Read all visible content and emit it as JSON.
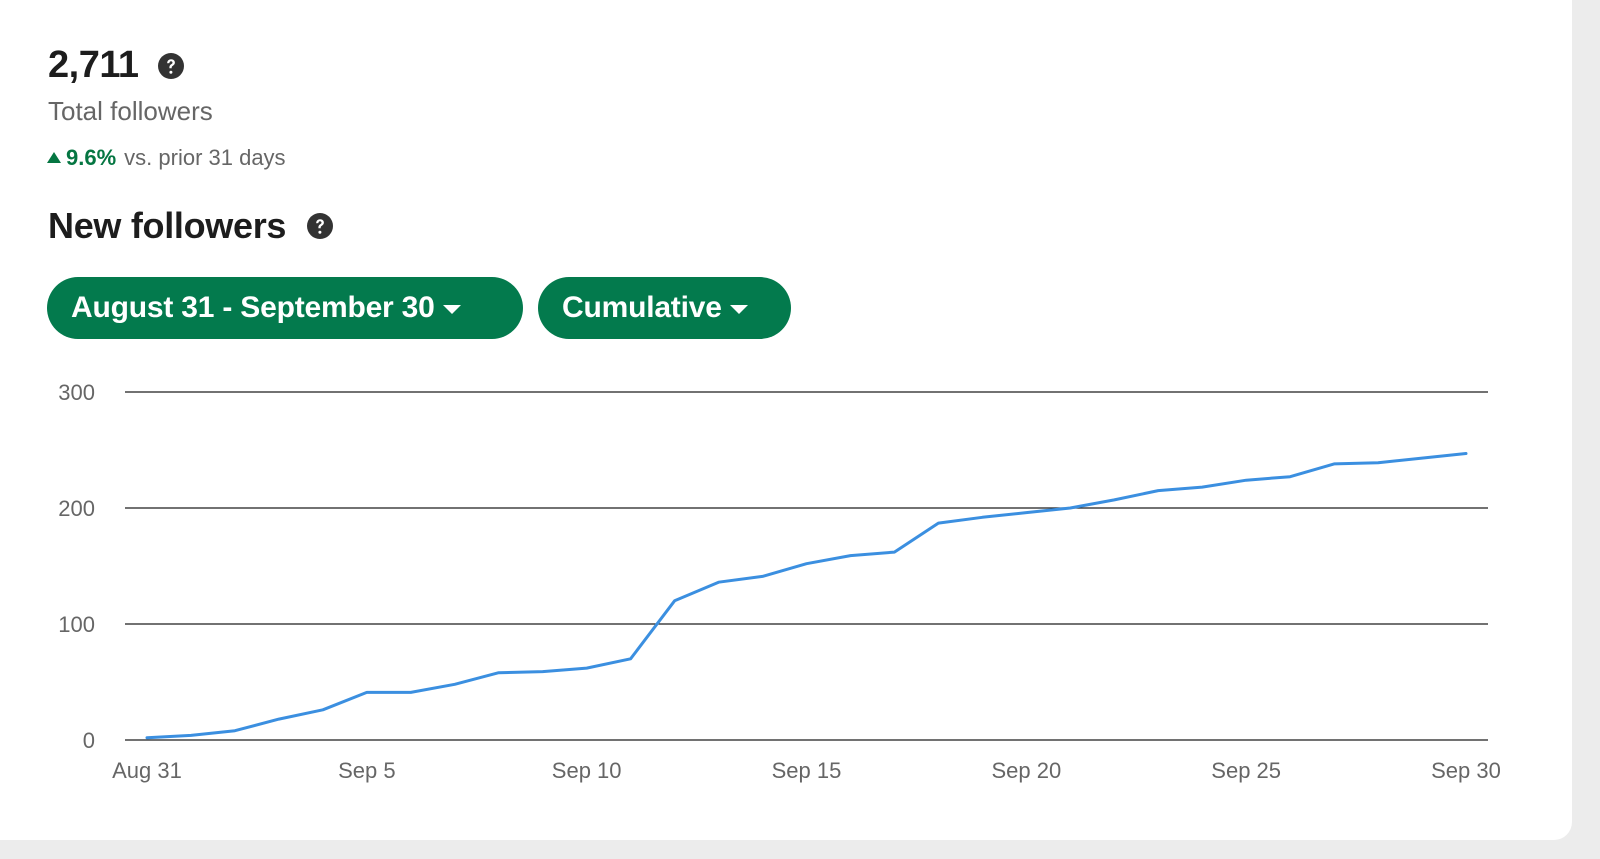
{
  "summary": {
    "total_value": "2,711",
    "total_label": "Total followers",
    "change_value": "9.6%",
    "change_text": "vs. prior 31 days"
  },
  "section": {
    "title": "New followers"
  },
  "filters": {
    "date_range_label": "August 31 - September 30",
    "mode_label": "Cumulative"
  },
  "colors": {
    "accent": "#037a4d",
    "positive": "#057642",
    "line": "#3b8fe0"
  },
  "icons": [
    "help-icon",
    "up-arrow-icon",
    "caret-down-icon"
  ],
  "chart_data": {
    "type": "line",
    "title": "",
    "xlabel": "",
    "ylabel": "",
    "ylim": [
      0,
      300
    ],
    "yticks": [
      "0",
      "100",
      "200",
      "300"
    ],
    "xticks": [
      "Aug 31",
      "Sep 5",
      "Sep 10",
      "Sep 15",
      "Sep 20",
      "Sep 25",
      "Sep 30"
    ],
    "grid": true,
    "x": [
      "Aug 31",
      "Sep 1",
      "Sep 2",
      "Sep 3",
      "Sep 4",
      "Sep 5",
      "Sep 6",
      "Sep 7",
      "Sep 8",
      "Sep 9",
      "Sep 10",
      "Sep 11",
      "Sep 12",
      "Sep 13",
      "Sep 14",
      "Sep 15",
      "Sep 16",
      "Sep 17",
      "Sep 18",
      "Sep 19",
      "Sep 20",
      "Sep 21",
      "Sep 22",
      "Sep 23",
      "Sep 24",
      "Sep 25",
      "Sep 26",
      "Sep 27",
      "Sep 28",
      "Sep 29",
      "Sep 30"
    ],
    "series": [
      {
        "values": [
          2,
          4,
          8,
          18,
          26,
          41,
          41,
          48,
          58,
          59,
          62,
          70,
          120,
          136,
          141,
          152,
          159,
          162,
          187,
          192,
          196,
          200,
          207,
          215,
          218,
          224,
          227,
          238,
          239,
          243,
          247
        ]
      }
    ]
  }
}
